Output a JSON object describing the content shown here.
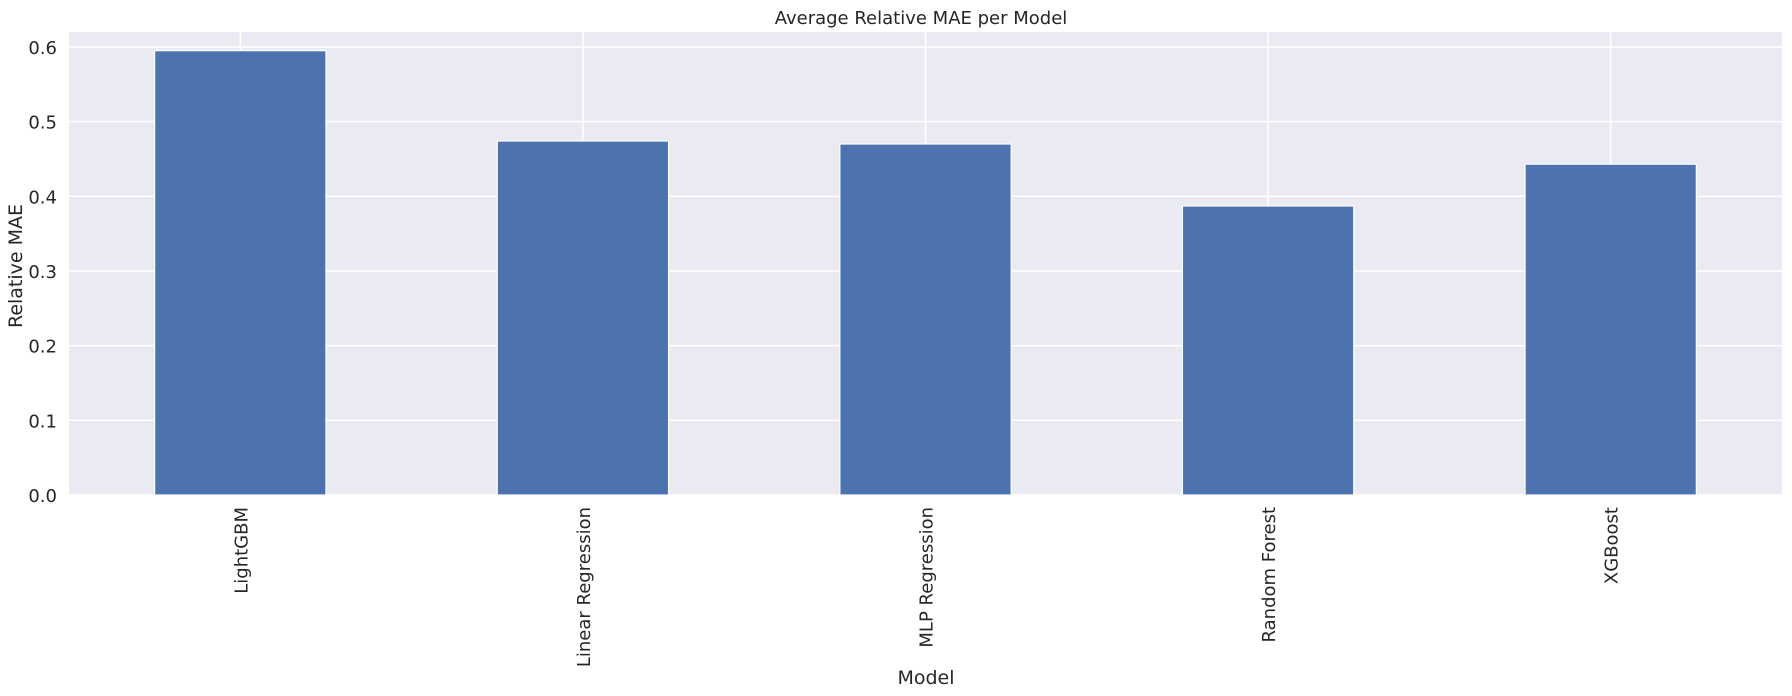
{
  "chart_data": {
    "type": "bar",
    "title": "Average Relative MAE per Model",
    "xlabel": "Model",
    "ylabel": "Relative MAE",
    "categories": [
      "LightGBM",
      "Linear Regression",
      "MLP Regression",
      "Random Forest",
      "XGBoost"
    ],
    "values": [
      0.595,
      0.474,
      0.47,
      0.387,
      0.443
    ],
    "ylim": [
      0,
      0.62
    ],
    "yticks": [
      0.0,
      0.1,
      0.2,
      0.3,
      0.4,
      0.5,
      0.6
    ],
    "ytick_labels": [
      "0.0",
      "0.1",
      "0.2",
      "0.3",
      "0.4",
      "0.5",
      "0.6"
    ],
    "grid": true,
    "legend": "none",
    "colors": {
      "bar": "#4c72b0",
      "plot_background": "#eaeaf2",
      "grid": "#ffffff"
    }
  }
}
